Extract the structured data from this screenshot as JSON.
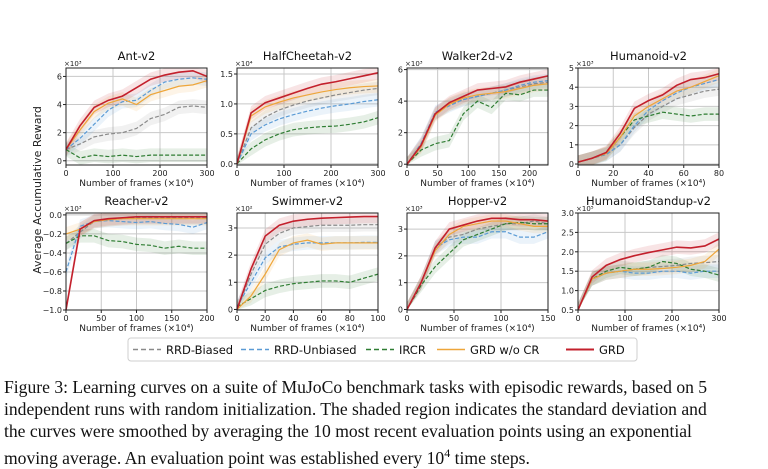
{
  "figure": {
    "ylabel": "Average Accumulative Reward",
    "legend": [
      {
        "name": "RRD-Biased",
        "color": "#8a8a8a",
        "dash": true
      },
      {
        "name": "RRD-Unbiased",
        "color": "#5b9bd5",
        "dash": true
      },
      {
        "name": "IRCR",
        "color": "#2e7d32",
        "dash": true
      },
      {
        "name": "GRD w/o CR",
        "color": "#eea63a",
        "dash": false
      },
      {
        "name": "GRD",
        "color": "#c3202c",
        "dash": false
      }
    ]
  },
  "caption": {
    "line1": "Figure 3: Learning curves on a suite of MuJoCo benchmark tasks with episodic rewards, based on 5",
    "line2": "independent runs with random initialization. The shaded region indicates the standard deviation and",
    "line3": "the curves were smoothed by averaging the 10 most recent evaluation points using an exponential",
    "line4_pre": "moving average. An evaluation point was established every 10",
    "line4_sup": "4",
    "line4_post": " time steps."
  },
  "chart_data": [
    {
      "type": "line",
      "title": "Ant-v2",
      "xlabel": "Number of frames (×10⁴)",
      "multiplier": "×10³",
      "xlim": [
        0,
        300
      ],
      "ylim": [
        -0.3,
        6.6
      ],
      "xticks": [
        0,
        100,
        200,
        300
      ],
      "yticks": [
        0,
        2,
        4,
        6
      ],
      "grid": true,
      "x": [
        0,
        30,
        60,
        90,
        120,
        150,
        180,
        210,
        240,
        270,
        300
      ],
      "series": [
        {
          "name": "RRD-Biased",
          "values": [
            0.8,
            1.2,
            1.7,
            1.9,
            2.0,
            2.3,
            3.0,
            3.3,
            3.8,
            3.9,
            3.8
          ]
        },
        {
          "name": "RRD-Unbiased",
          "values": [
            0.8,
            1.6,
            2.6,
            3.6,
            4.2,
            4.3,
            5.0,
            5.6,
            5.8,
            5.9,
            5.8
          ]
        },
        {
          "name": "IRCR",
          "values": [
            0.8,
            0.2,
            0.4,
            0.3,
            0.4,
            0.3,
            0.4,
            0.4,
            0.4,
            0.4,
            0.4
          ]
        },
        {
          "name": "GRD w/o CR",
          "values": [
            0.8,
            2.2,
            3.5,
            4.1,
            4.4,
            4.0,
            4.7,
            5.0,
            5.3,
            5.4,
            5.7
          ]
        },
        {
          "name": "GRD",
          "values": [
            0.8,
            2.5,
            3.8,
            4.3,
            4.6,
            5.2,
            5.8,
            6.1,
            6.3,
            6.4,
            6.0
          ]
        }
      ]
    },
    {
      "type": "line",
      "title": "HalfCheetah-v2",
      "xlabel": "Number of frames (×10⁴)",
      "multiplier": "×10⁴",
      "xlim": [
        0,
        300
      ],
      "ylim": [
        -0.02,
        1.6
      ],
      "xticks": [
        0,
        100,
        200,
        300
      ],
      "yticks": [
        0.0,
        0.5,
        1.0,
        1.5
      ],
      "grid": true,
      "x": [
        0,
        30,
        60,
        90,
        120,
        150,
        180,
        210,
        240,
        270,
        300
      ],
      "series": [
        {
          "name": "RRD-Biased",
          "values": [
            0,
            0.6,
            0.78,
            0.9,
            0.98,
            1.05,
            1.1,
            1.15,
            1.19,
            1.23,
            1.26
          ]
        },
        {
          "name": "RRD-Unbiased",
          "values": [
            0,
            0.5,
            0.65,
            0.75,
            0.82,
            0.88,
            0.93,
            0.97,
            1.0,
            1.04,
            1.07
          ]
        },
        {
          "name": "IRCR",
          "values": [
            0,
            0.25,
            0.4,
            0.5,
            0.57,
            0.6,
            0.62,
            0.63,
            0.66,
            0.7,
            0.77
          ]
        },
        {
          "name": "GRD w/o CR",
          "values": [
            0,
            0.8,
            0.95,
            1.03,
            1.1,
            1.15,
            1.2,
            1.24,
            1.27,
            1.29,
            1.3
          ]
        },
        {
          "name": "GRD",
          "values": [
            0,
            0.85,
            1.02,
            1.1,
            1.18,
            1.26,
            1.33,
            1.37,
            1.42,
            1.47,
            1.52
          ]
        }
      ]
    },
    {
      "type": "line",
      "title": "Walker2d-v2",
      "xlabel": "Number of frames (×10⁴)",
      "multiplier": "×10³",
      "xlim": [
        0,
        230
      ],
      "ylim": [
        -0.05,
        6.1
      ],
      "xticks": [
        0,
        50,
        100,
        150,
        200
      ],
      "yticks": [
        0,
        2,
        4,
        6
      ],
      "grid": true,
      "x": [
        0,
        23,
        46,
        69,
        92,
        115,
        138,
        161,
        184,
        207,
        230
      ],
      "series": [
        {
          "name": "RRD-Biased",
          "values": [
            0,
            1.3,
            3.2,
            3.8,
            4.1,
            4.3,
            4.5,
            4.7,
            4.9,
            5.1,
            5.2
          ]
        },
        {
          "name": "RRD-Unbiased",
          "values": [
            0,
            1.3,
            3.3,
            3.7,
            4.1,
            4.3,
            4.5,
            4.7,
            5.0,
            5.2,
            5.3
          ]
        },
        {
          "name": "IRCR",
          "values": [
            0,
            0.9,
            1.3,
            1.5,
            3.2,
            4.0,
            3.6,
            4.5,
            4.4,
            4.7,
            4.7
          ]
        },
        {
          "name": "GRD w/o CR",
          "values": [
            0,
            1.1,
            3.1,
            3.8,
            4.2,
            4.4,
            4.5,
            4.6,
            4.8,
            5.0,
            5.1
          ]
        },
        {
          "name": "GRD",
          "values": [
            0,
            1.2,
            3.2,
            3.9,
            4.3,
            4.7,
            4.8,
            4.9,
            5.2,
            5.4,
            5.6
          ]
        }
      ]
    },
    {
      "type": "line",
      "title": "Humanoid-v2",
      "xlabel": "Number of frames (×10⁴)",
      "multiplier": "×10³",
      "xlim": [
        0,
        80
      ],
      "ylim": [
        -0.05,
        5
      ],
      "xticks": [
        0,
        20,
        40,
        60,
        80
      ],
      "yticks": [
        0,
        1,
        2,
        3,
        4,
        5
      ],
      "grid": true,
      "x": [
        0,
        8,
        16,
        24,
        32,
        40,
        48,
        56,
        64,
        72,
        80
      ],
      "series": [
        {
          "name": "RRD-Biased",
          "values": [
            0.1,
            0.3,
            0.5,
            1.0,
            1.9,
            2.6,
            3.0,
            3.4,
            3.6,
            3.8,
            3.9
          ]
        },
        {
          "name": "RRD-Unbiased",
          "values": [
            0.1,
            0.3,
            0.5,
            1.0,
            2.0,
            2.8,
            3.3,
            3.7,
            4.0,
            4.2,
            4.4
          ]
        },
        {
          "name": "IRCR",
          "values": [
            0.1,
            0.3,
            0.55,
            1.4,
            2.3,
            2.5,
            2.7,
            2.6,
            2.5,
            2.6,
            2.6
          ]
        },
        {
          "name": "GRD w/o CR",
          "values": [
            0.1,
            0.3,
            0.55,
            1.4,
            2.5,
            3.0,
            3.4,
            3.8,
            4.0,
            4.3,
            4.6
          ]
        },
        {
          "name": "GRD",
          "values": [
            0.1,
            0.3,
            0.6,
            1.6,
            2.9,
            3.3,
            3.6,
            4.1,
            4.4,
            4.5,
            4.7
          ]
        }
      ]
    },
    {
      "type": "line",
      "title": "Reacher-v2",
      "xlabel": "Number of frames (×10⁴)",
      "multiplier": "×10³",
      "xlim": [
        0,
        200
      ],
      "ylim": [
        -1.0,
        0.02
      ],
      "xticks": [
        0,
        50,
        100,
        150,
        200
      ],
      "yticks": [
        0.0,
        -0.2,
        -0.4,
        -0.6,
        -0.8,
        -1.0
      ],
      "grid": true,
      "x": [
        0,
        20,
        40,
        60,
        80,
        100,
        120,
        140,
        160,
        180,
        200
      ],
      "series": [
        {
          "name": "RRD-Biased",
          "values": [
            -0.3,
            -0.18,
            -0.07,
            -0.05,
            -0.04,
            -0.03,
            -0.03,
            -0.03,
            -0.03,
            -0.03,
            -0.03
          ]
        },
        {
          "name": "RRD-Unbiased",
          "values": [
            -0.6,
            -0.12,
            -0.07,
            -0.06,
            -0.07,
            -0.08,
            -0.07,
            -0.09,
            -0.1,
            -0.13,
            -0.08
          ]
        },
        {
          "name": "IRCR",
          "values": [
            -0.3,
            -0.22,
            -0.22,
            -0.27,
            -0.28,
            -0.31,
            -0.32,
            -0.35,
            -0.33,
            -0.35,
            -0.35
          ]
        },
        {
          "name": "GRD w/o CR",
          "values": [
            -0.2,
            -0.15,
            -0.07,
            -0.05,
            -0.04,
            -0.04,
            -0.04,
            -0.04,
            -0.04,
            -0.04,
            -0.04
          ]
        },
        {
          "name": "GRD",
          "values": [
            -1.0,
            -0.15,
            -0.06,
            -0.04,
            -0.03,
            -0.02,
            -0.02,
            -0.02,
            -0.02,
            -0.02,
            -0.02
          ]
        }
      ]
    },
    {
      "type": "line",
      "title": "Swimmer-v2",
      "xlabel": "Number of frames (×10⁴)",
      "multiplier": "×10²",
      "xlim": [
        0,
        100
      ],
      "ylim": [
        -0.02,
        3.55
      ],
      "xticks": [
        0,
        20,
        40,
        60,
        80,
        100
      ],
      "yticks": [
        0,
        1,
        2,
        3
      ],
      "grid": true,
      "x": [
        0,
        10,
        20,
        30,
        40,
        50,
        60,
        70,
        80,
        90,
        100
      ],
      "series": [
        {
          "name": "RRD-Biased",
          "values": [
            0,
            1.3,
            2.4,
            2.8,
            3.0,
            3.05,
            3.1,
            3.1,
            3.1,
            3.12,
            3.12
          ]
        },
        {
          "name": "RRD-Unbiased",
          "values": [
            0.1,
            1.0,
            1.9,
            2.3,
            2.4,
            2.45,
            2.45,
            2.45,
            2.45,
            2.47,
            2.47
          ]
        },
        {
          "name": "IRCR",
          "values": [
            0.1,
            0.4,
            0.7,
            0.85,
            0.95,
            1.0,
            1.05,
            1.05,
            1.0,
            1.15,
            1.3
          ]
        },
        {
          "name": "GRD w/o CR",
          "values": [
            0,
            0.5,
            1.3,
            2.2,
            2.45,
            2.55,
            2.4,
            2.45,
            2.45,
            2.45,
            2.45
          ]
        },
        {
          "name": "GRD",
          "values": [
            0,
            1.5,
            2.7,
            3.1,
            3.25,
            3.32,
            3.36,
            3.38,
            3.4,
            3.42,
            3.42
          ]
        }
      ]
    },
    {
      "type": "line",
      "title": "Hopper-v2",
      "xlabel": "Number of frames (×10⁴)",
      "multiplier": "×10³",
      "xlim": [
        0,
        150
      ],
      "ylim": [
        -0.02,
        3.6
      ],
      "xticks": [
        0,
        50,
        100,
        150
      ],
      "yticks": [
        0,
        1,
        2,
        3
      ],
      "grid": true,
      "x": [
        0,
        15,
        30,
        45,
        60,
        75,
        90,
        105,
        120,
        135,
        150
      ],
      "series": [
        {
          "name": "RRD-Biased",
          "values": [
            0,
            1.0,
            2.3,
            2.7,
            2.8,
            3.0,
            3.1,
            3.2,
            3.2,
            3.3,
            3.2
          ]
        },
        {
          "name": "RRD-Unbiased",
          "values": [
            0,
            1.0,
            2.3,
            2.6,
            2.7,
            2.7,
            2.9,
            2.9,
            2.7,
            2.7,
            2.9
          ]
        },
        {
          "name": "IRCR",
          "values": [
            0,
            0.9,
            1.6,
            2.1,
            2.6,
            2.8,
            3.0,
            3.2,
            3.25,
            3.2,
            3.2
          ]
        },
        {
          "name": "GRD w/o CR",
          "values": [
            0,
            1.0,
            2.2,
            2.8,
            3.1,
            3.2,
            3.3,
            3.3,
            3.2,
            3.1,
            3.1
          ]
        },
        {
          "name": "GRD",
          "values": [
            0,
            1.0,
            2.3,
            3.0,
            3.15,
            3.3,
            3.4,
            3.4,
            3.35,
            3.35,
            3.3
          ]
        }
      ]
    },
    {
      "type": "line",
      "title": "HumanoidStandup-v2",
      "xlabel": "Number of frames (×10⁴)",
      "multiplier": "×10⁵",
      "xlim": [
        0,
        300
      ],
      "ylim": [
        0.5,
        3.0
      ],
      "xticks": [
        0,
        100,
        200,
        300
      ],
      "yticks": [
        0.5,
        1.0,
        1.5,
        2.0,
        2.5,
        3.0
      ],
      "grid": true,
      "x": [
        0,
        30,
        60,
        90,
        120,
        150,
        180,
        210,
        240,
        270,
        300
      ],
      "series": [
        {
          "name": "RRD-Biased",
          "values": [
            0.5,
            1.3,
            1.45,
            1.5,
            1.55,
            1.6,
            1.62,
            1.65,
            1.7,
            1.72,
            1.75
          ]
        },
        {
          "name": "RRD-Unbiased",
          "values": [
            0.5,
            1.3,
            1.45,
            1.5,
            1.45,
            1.45,
            1.5,
            1.5,
            1.45,
            1.5,
            1.5
          ]
        },
        {
          "name": "IRCR",
          "values": [
            0.5,
            1.3,
            1.5,
            1.6,
            1.55,
            1.6,
            1.75,
            1.7,
            1.55,
            1.5,
            1.4
          ]
        },
        {
          "name": "GRD w/o CR",
          "values": [
            0.5,
            1.3,
            1.45,
            1.5,
            1.55,
            1.55,
            1.57,
            1.6,
            1.65,
            1.75,
            2.07
          ]
        },
        {
          "name": "GRD",
          "values": [
            0.5,
            1.35,
            1.65,
            1.8,
            1.9,
            1.98,
            2.05,
            2.12,
            2.1,
            2.15,
            2.33
          ]
        }
      ]
    }
  ]
}
